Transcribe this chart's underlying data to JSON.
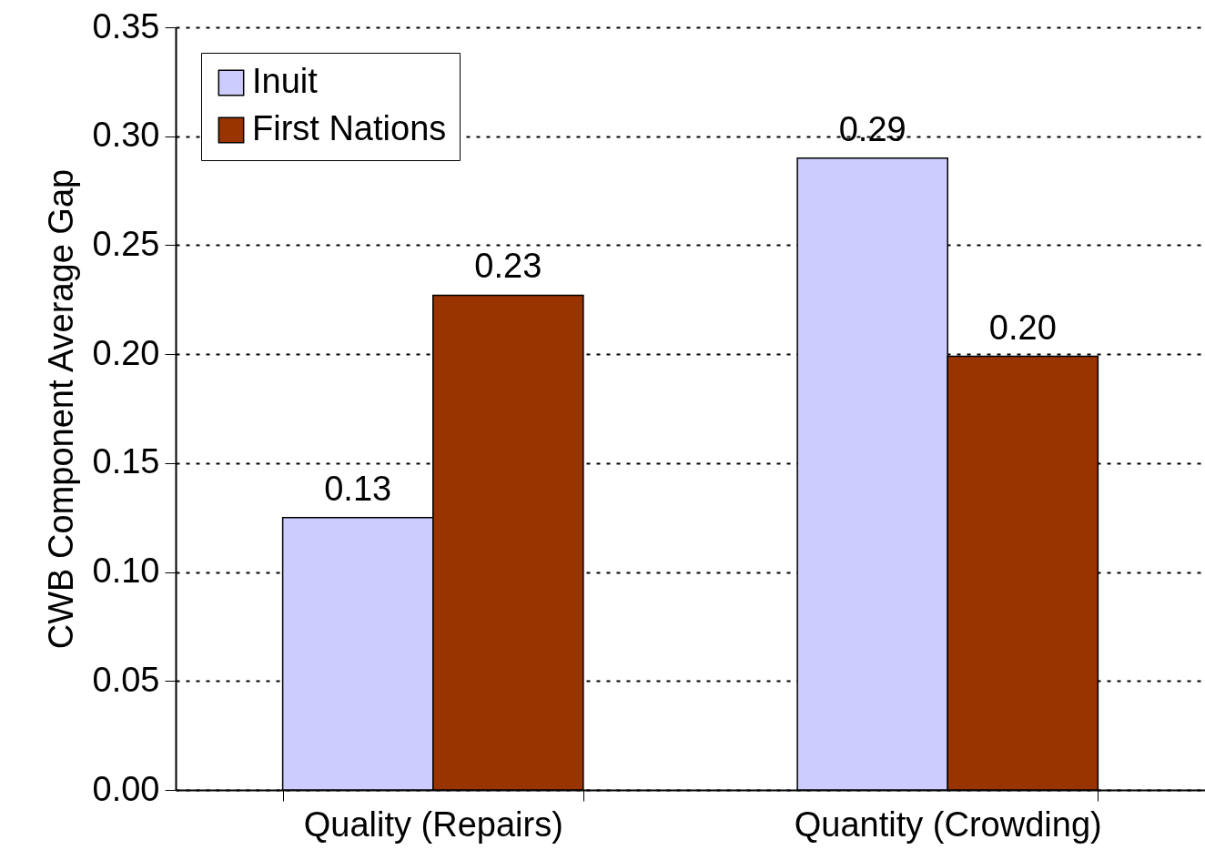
{
  "chart_data": {
    "type": "bar",
    "ylabel": "CWB Component Average Gap",
    "categories": [
      "Quality (Repairs)",
      "Quantity (Crowding)"
    ],
    "series": [
      {
        "name": "Inuit",
        "color": "#ccccff",
        "values": [
          0.125,
          0.29
        ],
        "value_labels": [
          "0.13",
          "0.29"
        ]
      },
      {
        "name": "First Nations",
        "color": "#993300",
        "values": [
          0.227,
          0.199
        ],
        "value_labels": [
          "0.23",
          "0.20"
        ]
      }
    ],
    "ylim": [
      0,
      0.35
    ],
    "yticks": [
      {
        "value": 0,
        "label": "0.00"
      },
      {
        "value": 0.05,
        "label": "0.05"
      },
      {
        "value": 0.1,
        "label": "0.10"
      },
      {
        "value": 0.15,
        "label": "0.15"
      },
      {
        "value": 0.2,
        "label": "0.20"
      },
      {
        "value": 0.25,
        "label": "0.25"
      },
      {
        "value": 0.3,
        "label": "0.30"
      },
      {
        "value": 0.35,
        "label": "0.35"
      }
    ],
    "grid": "y",
    "legend": "top left"
  }
}
